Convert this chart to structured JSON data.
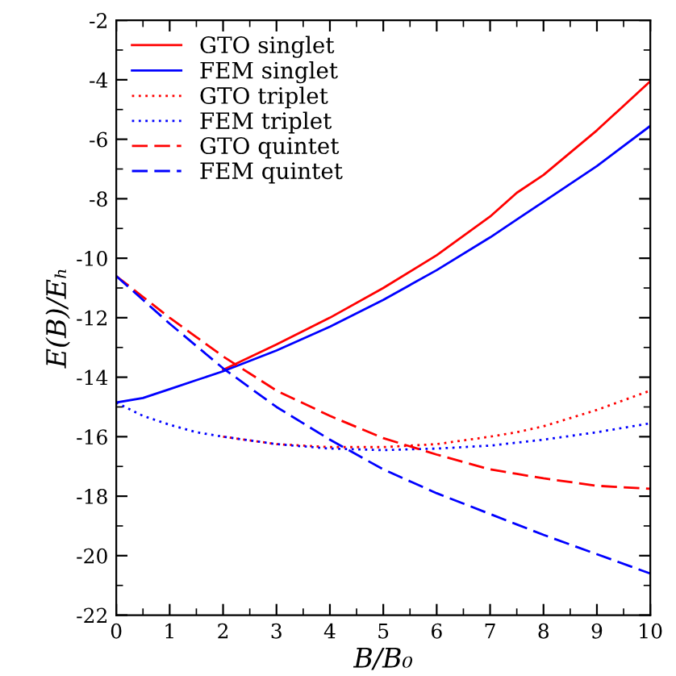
{
  "chart_data": {
    "type": "line",
    "xlabel": "B/B₀",
    "ylabel": "E(B)/Eₕ",
    "x": [
      0,
      0.5,
      1,
      1.5,
      2,
      3,
      4,
      5,
      6,
      7,
      7.5,
      8,
      9,
      10
    ],
    "series": [
      {
        "name": "GTO singlet",
        "color": "#ff0000",
        "line_style": "solid",
        "values": [
          null,
          null,
          null,
          null,
          -13.75,
          -12.9,
          -12.0,
          -11.0,
          -9.9,
          -8.6,
          -7.8,
          -7.2,
          -5.7,
          -4.05
        ]
      },
      {
        "name": "FEM singlet",
        "color": "#0000ff",
        "line_style": "solid",
        "values": [
          -14.85,
          -14.7,
          -14.4,
          -14.1,
          -13.8,
          -13.1,
          -12.3,
          -11.4,
          -10.4,
          -9.3,
          -8.7,
          -8.1,
          -6.9,
          -5.55
        ]
      },
      {
        "name": "GTO triplet",
        "color": "#ff0000",
        "line_style": "dotted",
        "values": [
          null,
          null,
          null,
          null,
          -16.0,
          -16.25,
          -16.35,
          -16.35,
          -16.25,
          -16.0,
          -15.85,
          -15.65,
          -15.1,
          -14.45
        ]
      },
      {
        "name": "FEM triplet",
        "color": "#0000ff",
        "line_style": "dotted",
        "values": [
          -14.85,
          -15.3,
          -15.6,
          -15.85,
          -16.0,
          -16.25,
          -16.4,
          -16.45,
          -16.4,
          -16.3,
          -16.2,
          -16.1,
          -15.85,
          -15.55
        ]
      },
      {
        "name": "GTO quintet",
        "color": "#ff0000",
        "line_style": "dashed",
        "values": [
          -10.6,
          -11.3,
          -12.0,
          -12.65,
          -13.3,
          -14.45,
          -15.3,
          -16.05,
          -16.6,
          -17.1,
          -17.25,
          -17.4,
          -17.65,
          -17.75
        ]
      },
      {
        "name": "FEM quintet",
        "color": "#0000ff",
        "line_style": "dashed",
        "values": [
          -10.6,
          -11.4,
          -12.2,
          -12.95,
          -13.7,
          -15.0,
          -16.1,
          -17.1,
          -17.9,
          -18.6,
          -18.95,
          -19.3,
          -19.95,
          -20.6
        ]
      }
    ],
    "xlim": [
      0,
      10
    ],
    "xticks": [
      0,
      1,
      2,
      3,
      4,
      5,
      6,
      7,
      8,
      9,
      10
    ],
    "ylim": [
      -22,
      -2
    ],
    "yticks": [
      -22,
      -20,
      -18,
      -16,
      -14,
      -12,
      -10,
      -8,
      -6,
      -4,
      -2
    ],
    "grid": false,
    "legend": "top left",
    "marker": "none"
  }
}
